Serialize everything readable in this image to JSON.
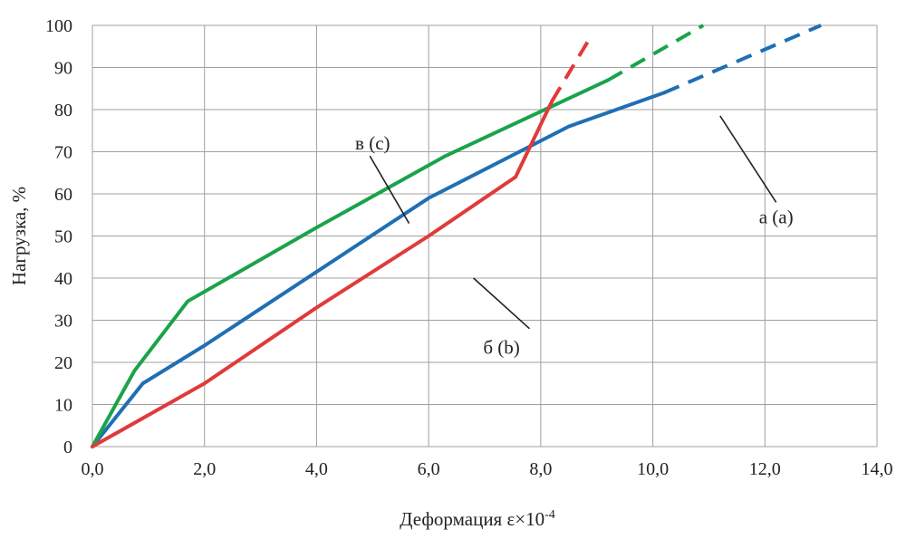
{
  "chart_data": {
    "type": "line",
    "title": "",
    "xlabel": "Деформация ε×10",
    "xlabel_sup": "-4",
    "ylabel": "Нагрузка, %",
    "xlim": [
      0,
      14
    ],
    "ylim": [
      0,
      100
    ],
    "x_ticks": [
      0,
      2,
      4,
      6,
      8,
      10,
      12,
      14
    ],
    "x_tick_labels": [
      "0,0",
      "2,0",
      "4,0",
      "6,0",
      "8,0",
      "10,0",
      "12,0",
      "14,0"
    ],
    "y_ticks": [
      0,
      10,
      20,
      30,
      40,
      50,
      60,
      70,
      80,
      90,
      100
    ],
    "y_tick_labels": [
      "0",
      "10",
      "20",
      "30",
      "40",
      "50",
      "60",
      "70",
      "80",
      "90",
      "100"
    ],
    "grid": true,
    "legend": "none",
    "series": [
      {
        "name": "а (a)",
        "color": "#1f6fb4",
        "points": [
          [
            0,
            0
          ],
          [
            0.9,
            15
          ],
          [
            2,
            24
          ],
          [
            4,
            41.5
          ],
          [
            6,
            59
          ],
          [
            8.5,
            76
          ],
          [
            10.2,
            84
          ]
        ],
        "dashed_points": [
          [
            10.2,
            84
          ],
          [
            13.0,
            100
          ]
        ]
      },
      {
        "name": "б (b)",
        "color": "#e03a3a",
        "points": [
          [
            0,
            0
          ],
          [
            2,
            15
          ],
          [
            4,
            33
          ],
          [
            6,
            50
          ],
          [
            7.55,
            64
          ],
          [
            8.2,
            82
          ]
        ],
        "dashed_points": [
          [
            8.2,
            82
          ],
          [
            8.9,
            97.5
          ]
        ]
      },
      {
        "name": "в (c)",
        "color": "#1aa34a",
        "points": [
          [
            0,
            0
          ],
          [
            0.75,
            18
          ],
          [
            1.7,
            34.5
          ],
          [
            4,
            52
          ],
          [
            6.3,
            69
          ],
          [
            9.2,
            87
          ]
        ],
        "dashed_points": [
          [
            9.2,
            87
          ],
          [
            10.9,
            100
          ]
        ]
      }
    ],
    "annotations": [
      {
        "text": "а (a)",
        "label_at": [
          12.2,
          54.5
        ],
        "line": [
          [
            11.2,
            78.5
          ],
          [
            12.2,
            58
          ]
        ]
      },
      {
        "text": "б (b)",
        "label_at": [
          7.3,
          23.5
        ],
        "line": [
          [
            6.8,
            40
          ],
          [
            7.8,
            28
          ]
        ]
      },
      {
        "text": "в (c)",
        "label_at": [
          5.0,
          72
        ],
        "line": [
          [
            4.95,
            69
          ],
          [
            5.65,
            53
          ]
        ]
      }
    ]
  }
}
